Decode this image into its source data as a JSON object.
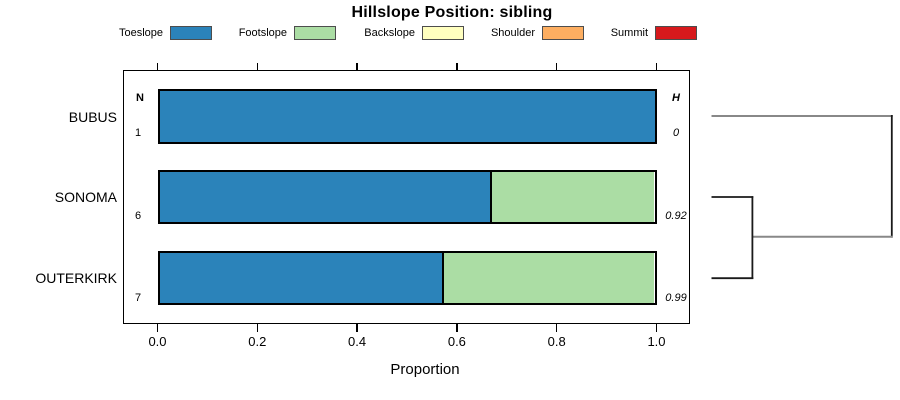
{
  "chart_data": {
    "type": "bar",
    "variant": "horizontal-stacked-proportion",
    "title": "Hillslope Position: sibling",
    "xlabel": "Proportion",
    "xlim": [
      0,
      1
    ],
    "xticks": [
      "0.0",
      "0.2",
      "0.4",
      "0.6",
      "0.8",
      "1.0"
    ],
    "grid": false,
    "legend_position": "top",
    "series_names": [
      "Toeslope",
      "Footslope",
      "Backslope",
      "Shoulder",
      "Summit"
    ],
    "series_colors": [
      "#2B83BA",
      "#ABDDA4",
      "#FFFFBF",
      "#FDAE61",
      "#D7191C"
    ],
    "columns": {
      "n_header": "N",
      "h_header": "H"
    },
    "rows": [
      {
        "label": "BUBUS",
        "n": "1",
        "h": "0",
        "segments": [
          {
            "series": "Toeslope",
            "value": 1.0
          }
        ]
      },
      {
        "label": "SONOMA",
        "n": "6",
        "h": "0.92",
        "segments": [
          {
            "series": "Toeslope",
            "value": 0.667
          },
          {
            "series": "Footslope",
            "value": 0.333
          }
        ]
      },
      {
        "label": "OUTERKIRK",
        "n": "7",
        "h": "0.99",
        "segments": [
          {
            "series": "Toeslope",
            "value": 0.571
          },
          {
            "series": "Footslope",
            "value": 0.429
          }
        ]
      }
    ],
    "dendrogram": {
      "structure": "((SONOMA, OUTERKIRK), BUBUS)",
      "note": "SONOMA and OUTERKIRK merge first at a lower height; BUBUS joins the cluster at the maximum height"
    }
  }
}
